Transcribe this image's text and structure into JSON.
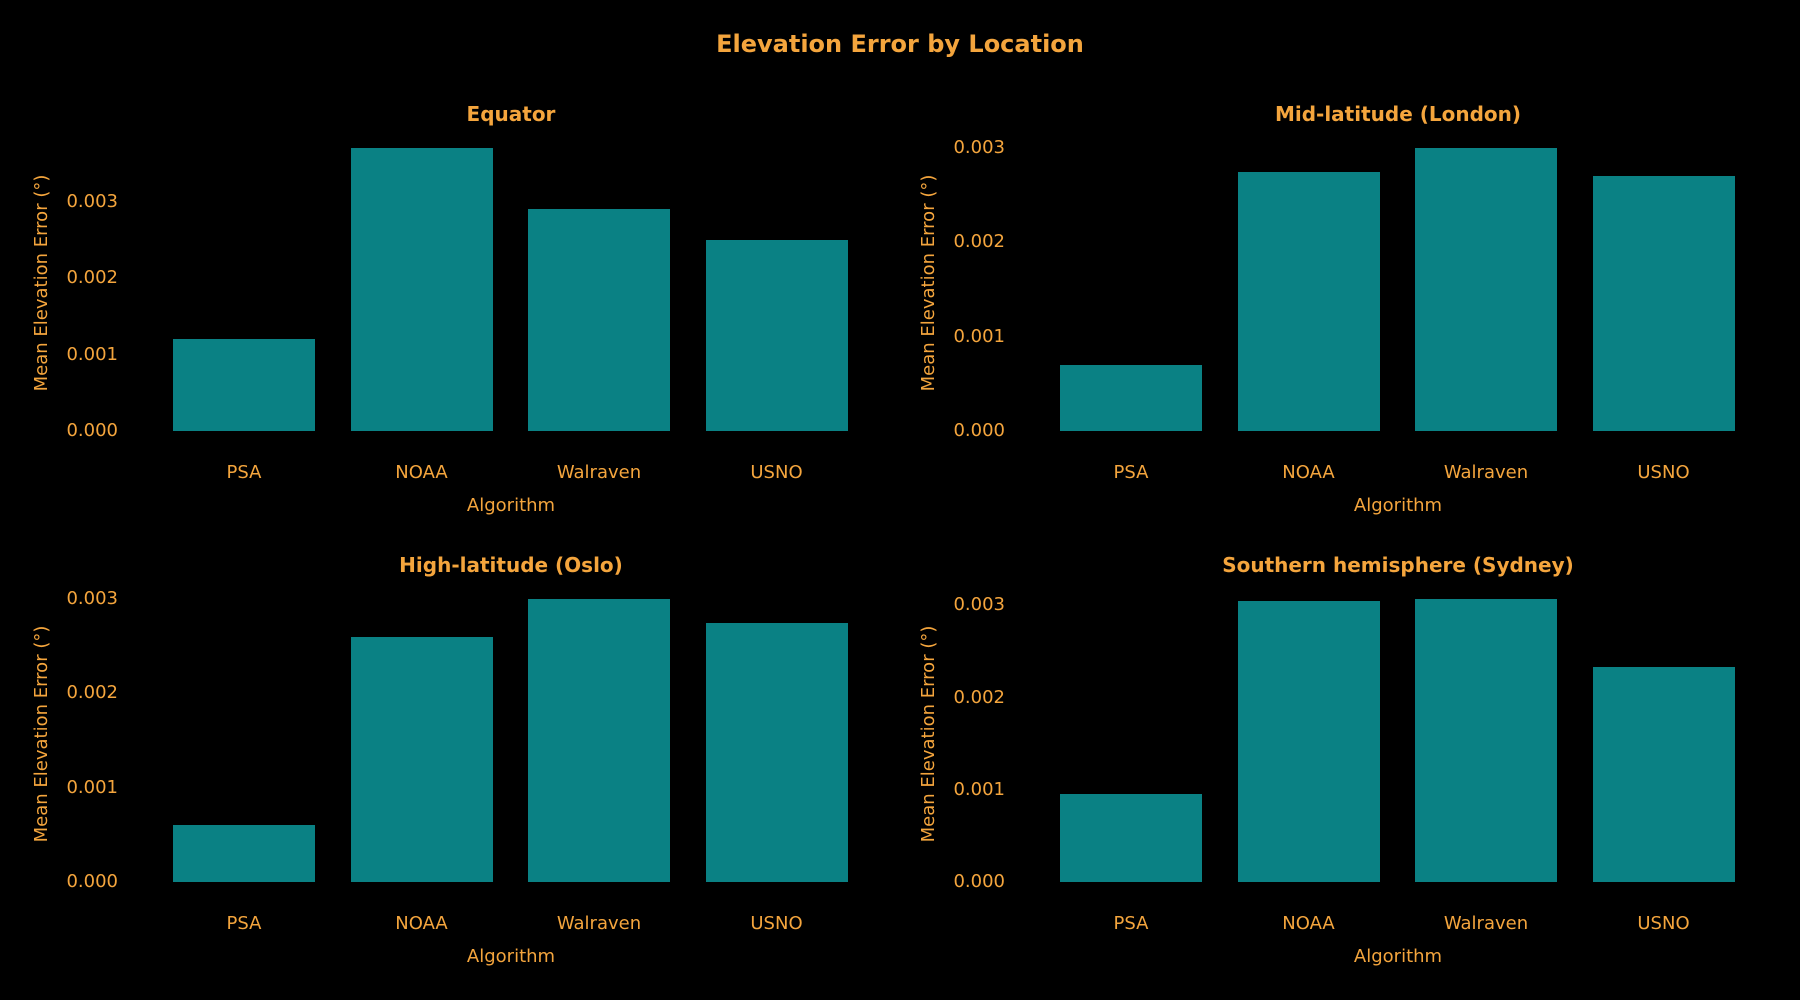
{
  "title": "Elevation Error by Location",
  "colors": {
    "background": "#000000",
    "text": "#F4A53D",
    "bar": "#0A8184"
  },
  "chart_data": [
    {
      "type": "bar",
      "title": "Equator",
      "categories": [
        "PSA",
        "NOAA",
        "Walraven",
        "USNO"
      ],
      "values": [
        0.0012,
        0.0037,
        0.0029,
        0.0025
      ],
      "xlabel": "Algorithm",
      "ylabel": "Mean Elevation Error (°)",
      "yticks": [
        0.0,
        0.001,
        0.002,
        0.003
      ],
      "ytick_labels": [
        "0.000",
        "0.001",
        "0.002",
        "0.003"
      ],
      "ylim": [
        0,
        0.003885
      ],
      "grid": false,
      "legend": "none"
    },
    {
      "type": "bar",
      "title": "Mid-latitude (London)",
      "categories": [
        "PSA",
        "NOAA",
        "Walraven",
        "USNO"
      ],
      "values": [
        0.0007,
        0.00275,
        0.003,
        0.0027
      ],
      "xlabel": "Algorithm",
      "ylabel": "Mean Elevation Error (°)",
      "yticks": [
        0.0,
        0.001,
        0.002,
        0.003
      ],
      "ytick_labels": [
        "0.000",
        "0.001",
        "0.002",
        "0.003"
      ],
      "ylim": [
        0,
        0.00315
      ],
      "grid": false,
      "legend": "none"
    },
    {
      "type": "bar",
      "title": "High-latitude (Oslo)",
      "categories": [
        "PSA",
        "NOAA",
        "Walraven",
        "USNO"
      ],
      "values": [
        0.0006,
        0.0026,
        0.003,
        0.00275
      ],
      "xlabel": "Algorithm",
      "ylabel": "Mean Elevation Error (°)",
      "yticks": [
        0.0,
        0.001,
        0.002,
        0.003
      ],
      "ytick_labels": [
        "0.000",
        "0.001",
        "0.002",
        "0.003"
      ],
      "ylim": [
        0,
        0.00315
      ],
      "grid": false,
      "legend": "none"
    },
    {
      "type": "bar",
      "title": "Southern hemisphere (Sydney)",
      "categories": [
        "PSA",
        "NOAA",
        "Walraven",
        "USNO"
      ],
      "values": [
        0.00095,
        0.00305,
        0.00307,
        0.00233
      ],
      "xlabel": "Algorithm",
      "ylabel": "Mean Elevation Error (°)",
      "yticks": [
        0.0,
        0.001,
        0.002,
        0.003
      ],
      "ytick_labels": [
        "0.000",
        "0.001",
        "0.002",
        "0.003"
      ],
      "ylim": [
        0,
        0.00322
      ],
      "grid": false,
      "legend": "none"
    }
  ]
}
